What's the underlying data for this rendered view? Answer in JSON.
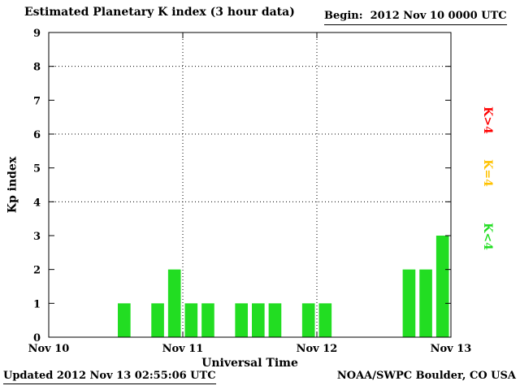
{
  "header": {
    "title": "Estimated Planetary K index (3 hour data)",
    "begin_text": "Begin:  2012 Nov 10 0000 UTC"
  },
  "footer": {
    "updated": "Updated 2012 Nov 13 02:55:06 UTC",
    "source": "NOAA/SWPC Boulder, CO USA"
  },
  "chart_data": {
    "type": "bar",
    "title": "Estimated Planetary K index (3 hour data)",
    "xlabel": "Universal Time",
    "ylabel": "Kp index",
    "begin": "2012 Nov 10 0000 UTC",
    "bin_hours": 3,
    "ylim": [
      0,
      9
    ],
    "y_ticks": [
      0,
      1,
      2,
      3,
      4,
      5,
      6,
      7,
      8,
      9
    ],
    "x_ticks": [
      "Nov 10",
      "Nov 11",
      "Nov 12",
      "Nov 13"
    ],
    "gridlines_y": [
      4,
      6,
      8
    ],
    "grid_style": "dotted",
    "legend_position": "right",
    "values": [
      0,
      0,
      0,
      0,
      1,
      0,
      1,
      2,
      1,
      1,
      0,
      1,
      1,
      1,
      0,
      1,
      1,
      0,
      0,
      0,
      0,
      2,
      2,
      3
    ],
    "colors": {
      "k_lt4": "#22dd22",
      "k_eq4": "#ffc200",
      "k_gt4": "#ff0000"
    },
    "legend": [
      {
        "label": "K>4",
        "color_key": "k_gt4"
      },
      {
        "label": "K=4",
        "color_key": "k_eq4"
      },
      {
        "label": "K<4",
        "color_key": "k_lt4"
      }
    ]
  }
}
